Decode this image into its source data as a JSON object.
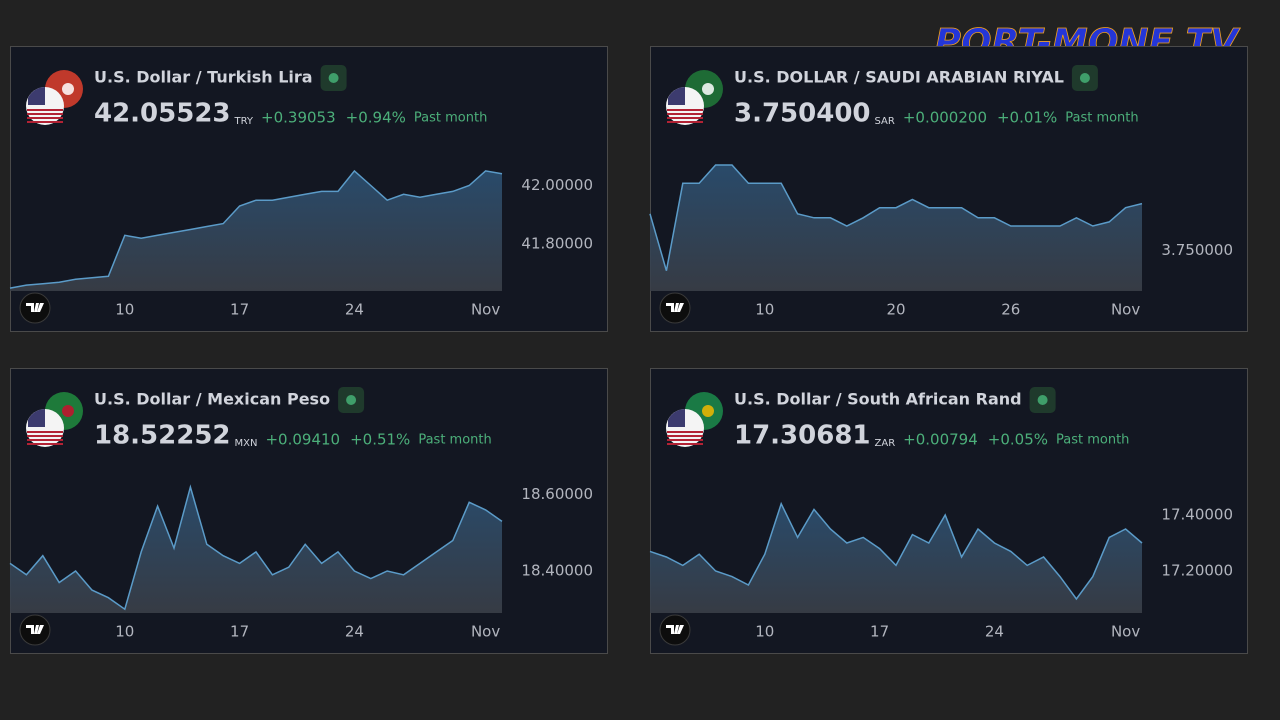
{
  "watermark": "PORT-MONE TV",
  "chart_data": [
    {
      "type": "area",
      "title": "U.S. Dollar / Turkish Lira",
      "quote": {
        "price": "42.05523",
        "currency": "TRY",
        "change": "+0.39053",
        "change_percent": "+0.94%",
        "period": "Past month"
      },
      "categories": [
        null,
        null,
        null,
        null,
        null,
        null,
        null,
        "10",
        null,
        null,
        null,
        null,
        null,
        null,
        "17",
        null,
        null,
        null,
        null,
        null,
        null,
        "24",
        null,
        null,
        null,
        null,
        null,
        null,
        null,
        "Nov",
        null
      ],
      "values": [
        41.65,
        41.66,
        41.665,
        41.67,
        41.68,
        41.685,
        41.69,
        41.83,
        41.82,
        41.83,
        41.84,
        41.85,
        41.86,
        41.87,
        41.93,
        41.95,
        41.95,
        41.96,
        41.97,
        41.98,
        41.98,
        42.05,
        42.0,
        41.95,
        41.97,
        41.96,
        41.97,
        41.98,
        42.0,
        42.05,
        42.04
      ],
      "color": "#5b9bc8",
      "ylim": [
        41.64,
        42.07
      ],
      "yticks": [
        {
          "value": 41.8,
          "label": "41.80000"
        },
        {
          "value": 42,
          "label": "42.00000"
        }
      ]
    },
    {
      "type": "area",
      "title": "U.S. DOLLAR / SAUDI ARABIAN RIYAL",
      "quote": {
        "price": "3.750400",
        "currency": "SAR",
        "change": "+0.000200",
        "change_percent": "+0.01%",
        "period": "Past month"
      },
      "categories": [
        null,
        null,
        null,
        null,
        null,
        null,
        null,
        "10",
        null,
        null,
        null,
        null,
        null,
        null,
        null,
        "20",
        null,
        null,
        null,
        null,
        null,
        null,
        "26",
        null,
        null,
        null,
        null,
        null,
        null,
        "Nov",
        null
      ],
      "values": [
        3.75018,
        3.7499,
        3.75033,
        3.75033,
        3.75042,
        3.75042,
        3.75033,
        3.75033,
        3.75033,
        3.75018,
        3.75016,
        3.75016,
        3.75012,
        3.75016,
        3.75021,
        3.75021,
        3.75025,
        3.75021,
        3.75021,
        3.75021,
        3.75016,
        3.75016,
        3.75012,
        3.75012,
        3.75012,
        3.75012,
        3.75016,
        3.75012,
        3.75014,
        3.75021,
        3.75023
      ],
      "color": "#5b9bc8",
      "ylim": [
        3.7498,
        3.75042
      ],
      "yticks": [
        {
          "value": 3.75,
          "label": "3.750000"
        }
      ]
    },
    {
      "type": "area",
      "title": "U.S. Dollar / Mexican Peso",
      "quote": {
        "price": "18.52252",
        "currency": "MXN",
        "change": "+0.09410",
        "change_percent": "+0.51%",
        "period": "Past month"
      },
      "categories": [
        null,
        null,
        null,
        null,
        null,
        null,
        null,
        "10",
        null,
        null,
        null,
        null,
        null,
        null,
        "17",
        null,
        null,
        null,
        null,
        null,
        null,
        "24",
        null,
        null,
        null,
        null,
        null,
        null,
        null,
        "Nov",
        null
      ],
      "values": [
        18.42,
        18.39,
        18.44,
        18.37,
        18.4,
        18.35,
        18.33,
        18.3,
        18.45,
        18.57,
        18.46,
        18.62,
        18.47,
        18.44,
        18.42,
        18.45,
        18.39,
        18.41,
        18.47,
        18.42,
        18.45,
        18.4,
        18.38,
        18.4,
        18.39,
        18.42,
        18.45,
        18.48,
        18.58,
        18.56,
        18.53
      ],
      "color": "#5b9bc8",
      "ylim": [
        18.29,
        18.62
      ],
      "yticks": [
        {
          "value": 18.4,
          "label": "18.40000"
        },
        {
          "value": 18.6,
          "label": "18.60000"
        }
      ]
    },
    {
      "type": "area",
      "title": "U.S. Dollar / South African Rand",
      "quote": {
        "price": "17.30681",
        "currency": "ZAR",
        "change": "+0.00794",
        "change_percent": "+0.05%",
        "period": "Past month"
      },
      "categories": [
        null,
        null,
        null,
        null,
        null,
        null,
        null,
        "10",
        null,
        null,
        null,
        null,
        null,
        null,
        "17",
        null,
        null,
        null,
        null,
        null,
        null,
        "24",
        null,
        null,
        null,
        null,
        null,
        null,
        null,
        "Nov",
        null
      ],
      "values": [
        17.27,
        17.25,
        17.22,
        17.26,
        17.2,
        17.18,
        17.15,
        17.26,
        17.44,
        17.32,
        17.42,
        17.35,
        17.3,
        17.32,
        17.28,
        17.22,
        17.33,
        17.3,
        17.4,
        17.25,
        17.35,
        17.3,
        17.27,
        17.22,
        17.25,
        17.18,
        17.1,
        17.18,
        17.32,
        17.35,
        17.3
      ],
      "color": "#5b9bc8",
      "ylim": [
        17.05,
        17.5
      ],
      "yticks": [
        {
          "value": 17.2,
          "label": "17.20000"
        },
        {
          "value": 17.4,
          "label": "17.40000"
        }
      ]
    }
  ]
}
